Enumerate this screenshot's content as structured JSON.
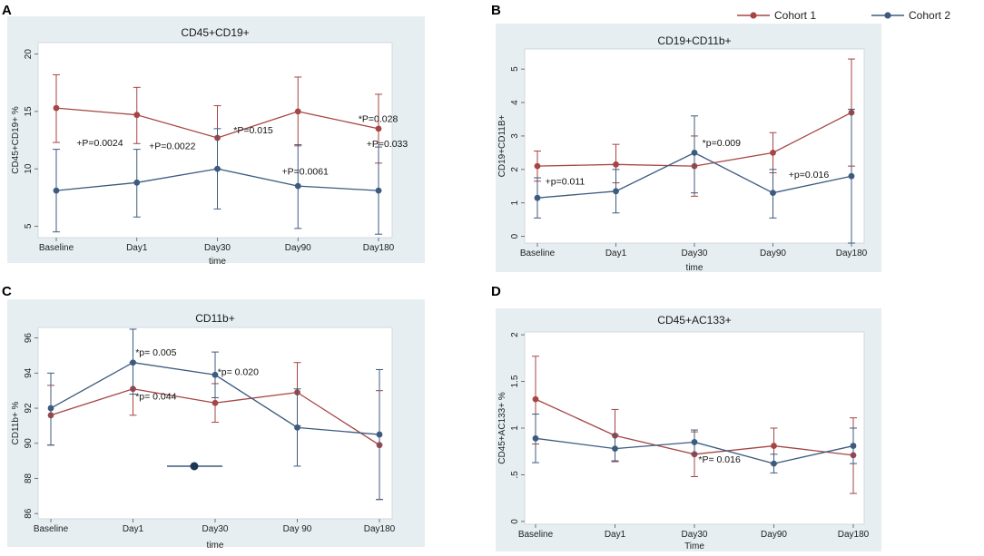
{
  "legend": {
    "series": [
      {
        "name": "Cohort 1",
        "color": "#a64545"
      },
      {
        "name": "Cohort 2",
        "color": "#3c5b7f"
      }
    ]
  },
  "chart_data": [
    {
      "panel": "A",
      "type": "line",
      "title": "CD45+CD19+",
      "xlabel": "time",
      "ylabel": "CD45+CD19+ %",
      "categories": [
        "Baseline",
        "Day1",
        "Day30",
        "Day90",
        "Day180"
      ],
      "ylim": [
        4,
        21
      ],
      "yticks": [
        5,
        10,
        15,
        20
      ],
      "ytick_labels": [
        "5",
        "10",
        "15",
        "20"
      ],
      "series": [
        {
          "name": "Cohort 1",
          "values": [
            15.3,
            14.7,
            12.7,
            15.0,
            13.5
          ],
          "err_low": [
            12.3,
            12.2,
            10.0,
            12.0,
            10.5
          ],
          "err_high": [
            18.2,
            17.1,
            15.5,
            18.0,
            16.5
          ]
        },
        {
          "name": "Cohort 2",
          "values": [
            8.1,
            8.8,
            10.0,
            8.5,
            8.1
          ],
          "err_low": [
            4.5,
            5.8,
            6.5,
            4.8,
            4.3
          ],
          "err_high": [
            11.7,
            11.7,
            13.5,
            12.1,
            11.9
          ]
        }
      ],
      "annotations": [
        {
          "text": "+P=0.0024",
          "x": 0.25,
          "y": 12.0
        },
        {
          "text": "+P=0.0022",
          "x": 1.15,
          "y": 11.7
        },
        {
          "text": "*P=0.015",
          "x": 2.2,
          "y": 13.1
        },
        {
          "text": "+P=0.0061",
          "x": 2.8,
          "y": 9.5
        },
        {
          "text": "*P=0.028",
          "x": 3.75,
          "y": 14.1
        },
        {
          "text": "+P=0.033",
          "x": 3.85,
          "y": 11.9
        }
      ]
    },
    {
      "panel": "B",
      "type": "line",
      "title": "CD19+CD11b+",
      "xlabel": "time",
      "ylabel": "CD19+CD11B+",
      "categories": [
        "Baseline",
        "Day1",
        "Day30",
        "Day90",
        "Day180"
      ],
      "ylim": [
        -0.2,
        5.6
      ],
      "yticks": [
        0,
        1,
        2,
        3,
        4,
        5
      ],
      "ytick_labels": [
        "0",
        "1",
        "2",
        "3",
        "4",
        "5"
      ],
      "series": [
        {
          "name": "Cohort 1",
          "values": [
            2.1,
            2.15,
            2.1,
            2.5,
            3.7
          ],
          "err_low": [
            1.65,
            1.6,
            1.2,
            1.9,
            2.1
          ],
          "err_high": [
            2.55,
            2.75,
            3.0,
            3.1,
            5.3
          ]
        },
        {
          "name": "Cohort 2",
          "values": [
            1.15,
            1.35,
            2.5,
            1.3,
            1.8
          ],
          "err_low": [
            0.55,
            0.7,
            1.3,
            0.55,
            -0.2
          ],
          "err_high": [
            1.75,
            2.0,
            3.6,
            2.0,
            3.8
          ]
        }
      ],
      "annotations": [
        {
          "text": "+p=0.011",
          "x": 0.1,
          "y": 1.55
        },
        {
          "text": "*p=0.009",
          "x": 2.1,
          "y": 2.7
        },
        {
          "text": "+p=0.016",
          "x": 3.2,
          "y": 1.75
        }
      ]
    },
    {
      "panel": "C",
      "type": "line",
      "title": "CD11b+",
      "xlabel": "time",
      "ylabel": "CD11b+ %",
      "categories": [
        "Baseline",
        "Day1",
        "Day30",
        "Day 90",
        "Day180"
      ],
      "ylim": [
        85.7,
        96.6
      ],
      "yticks": [
        86,
        88,
        90,
        92,
        94,
        96
      ],
      "ytick_labels": [
        "86",
        "88",
        "90",
        "92",
        "94",
        "96"
      ],
      "series": [
        {
          "name": "Cohort 1",
          "values": [
            91.6,
            93.1,
            92.3,
            92.9,
            89.9
          ],
          "err_low": [
            89.9,
            91.6,
            91.2,
            91.0,
            86.8
          ],
          "err_high": [
            93.3,
            94.6,
            93.4,
            94.6,
            93.0
          ]
        },
        {
          "name": "Cohort 2",
          "values": [
            92.0,
            94.6,
            93.9,
            90.9,
            90.5
          ],
          "err_low": [
            89.9,
            92.8,
            92.6,
            88.7,
            86.8
          ],
          "err_high": [
            94.0,
            96.5,
            95.2,
            93.1,
            94.2
          ]
        }
      ],
      "annotations": [
        {
          "text": "*p= 0.005",
          "x": 1.03,
          "y": 95.0
        },
        {
          "text": "*p= 0.020",
          "x": 2.03,
          "y": 93.9
        },
        {
          "text": "*p= 0.044",
          "x": 1.03,
          "y": 92.5
        }
      ]
    },
    {
      "panel": "D",
      "type": "line",
      "title": "CD45+AC133+",
      "xlabel": "Time",
      "ylabel": "CD45+AC133+ %",
      "categories": [
        "Baseline",
        "Day1",
        "Day30",
        "Day90",
        "Day180"
      ],
      "ylim": [
        -0.03,
        2.03
      ],
      "yticks": [
        0,
        0.5,
        1,
        1.5,
        2
      ],
      "ytick_labels": [
        "0",
        ".5",
        "1",
        "1.5",
        "2"
      ],
      "series": [
        {
          "name": "Cohort 1",
          "values": [
            1.31,
            0.92,
            0.72,
            0.81,
            0.71
          ],
          "err_low": [
            0.83,
            0.64,
            0.48,
            0.62,
            0.3
          ],
          "err_high": [
            1.77,
            1.2,
            0.96,
            1.0,
            1.11
          ]
        },
        {
          "name": "Cohort 2",
          "values": [
            0.89,
            0.78,
            0.85,
            0.62,
            0.81
          ],
          "err_low": [
            0.63,
            0.65,
            0.72,
            0.52,
            0.62
          ],
          "err_high": [
            1.15,
            0.93,
            0.98,
            0.72,
            1.0
          ]
        }
      ],
      "annotations": [
        {
          "text": "*P= 0.016",
          "x": 2.05,
          "y": 0.63
        }
      ]
    }
  ]
}
